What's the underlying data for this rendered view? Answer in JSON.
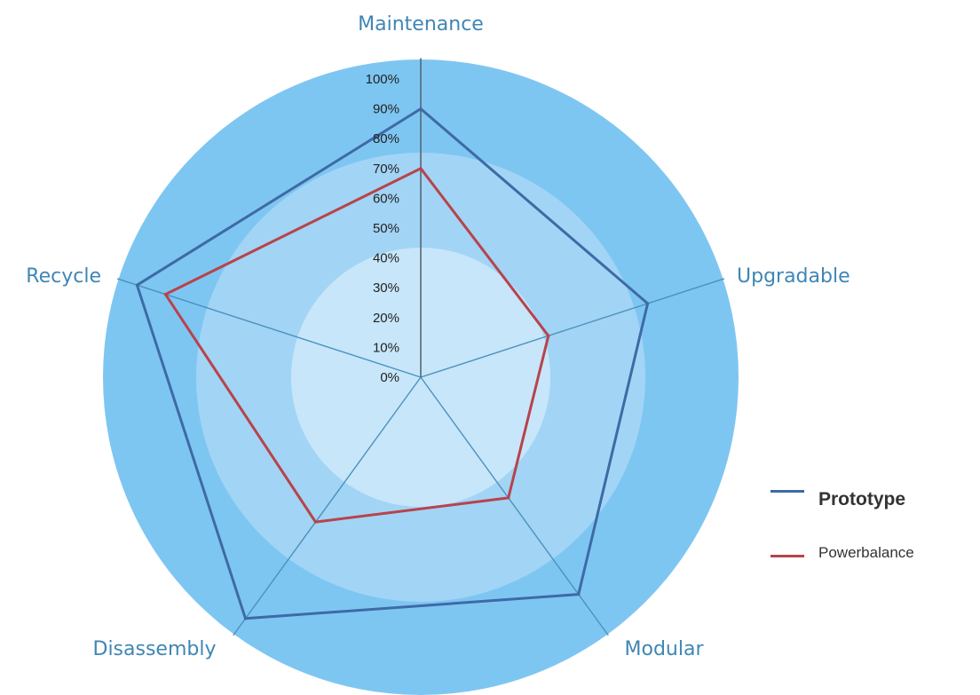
{
  "chart_data": {
    "type": "radar",
    "axes": [
      "Maintenance",
      "Upgradable",
      "Modular",
      "Disassembly",
      "Recycle"
    ],
    "ticks": [
      "0%",
      "10%",
      "20%",
      "30%",
      "40%",
      "50%",
      "60%",
      "70%",
      "80%",
      "90%",
      "100%"
    ],
    "rmax": 1.0,
    "series": [
      {
        "name": "Prototype",
        "values": [
          0.9,
          0.8,
          0.9,
          1.0,
          1.0
        ],
        "color": "#3e6aa6"
      },
      {
        "name": "Powerbalance",
        "values": [
          0.7,
          0.45,
          0.5,
          0.6,
          0.9
        ],
        "color": "#b8434b"
      }
    ],
    "colors": {
      "outer_band": "#7ec6f2",
      "middle_band": "#a2d4f5",
      "inner_disc": "#c7e6fa",
      "spokes": "#4a92bd"
    },
    "legend_position": "right"
  }
}
